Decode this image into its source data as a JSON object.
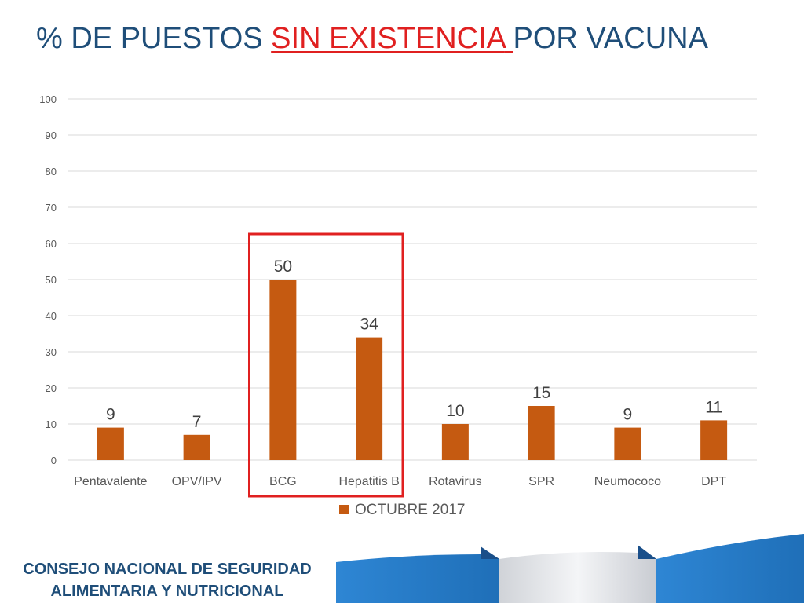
{
  "title": {
    "part1": "% DE PUESTOS ",
    "highlight": "SIN EXISTENCIA",
    "gap": " ",
    "part2": "POR VACUNA"
  },
  "footer": {
    "line1": "CONSEJO NACIONAL DE SEGURIDAD",
    "line2": "ALIMENTARIA Y NUTRICIONAL"
  },
  "colors": {
    "title": "#1f4e79",
    "highlight": "#e02020",
    "bar": "#c55a11",
    "grid": "#d9d9d9",
    "tick_text": "#595959",
    "box": "#e02020",
    "footer_blue": "#2e75b6"
  },
  "chart_data": {
    "type": "bar",
    "categories": [
      "Pentavalente",
      "OPV/IPV",
      "BCG",
      "Hepatitis B",
      "Rotavirus",
      "SPR",
      "Neumococo",
      "DPT"
    ],
    "series": [
      {
        "name": "OCTUBRE 2017",
        "values": [
          9,
          7,
          50,
          34,
          10,
          15,
          9,
          11
        ]
      }
    ],
    "ylim": [
      0,
      100
    ],
    "yticks": [
      0,
      10,
      20,
      30,
      40,
      50,
      60,
      70,
      80,
      90,
      100
    ],
    "grid": true,
    "legend": "bottom",
    "data_labels": true,
    "highlight_box_categories": [
      "BCG",
      "Hepatitis B"
    ]
  }
}
